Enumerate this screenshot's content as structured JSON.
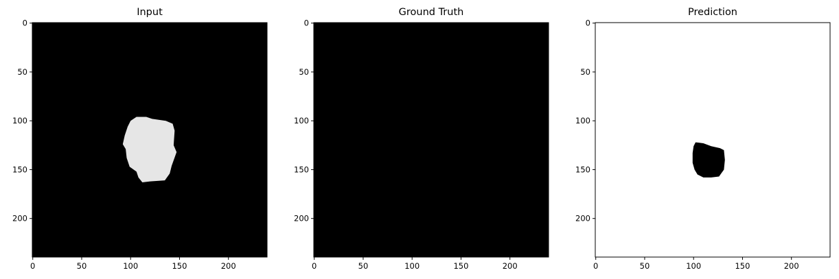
{
  "chart_data": [
    {
      "type": "heatmap",
      "title": "Input",
      "x_ticks": [
        0,
        50,
        100,
        150,
        200
      ],
      "y_ticks": [
        0,
        50,
        100,
        150,
        200
      ],
      "xlim": [
        -0.5,
        239.5
      ],
      "ylim": [
        239.5,
        -0.5
      ],
      "background": "#000000",
      "region": {
        "color": "#e6e6e6",
        "outline": [
          [
            106,
            96
          ],
          [
            116,
            96
          ],
          [
            122,
            98
          ],
          [
            136,
            100
          ],
          [
            143,
            103
          ],
          [
            145,
            110
          ],
          [
            144,
            125
          ],
          [
            147,
            132
          ],
          [
            142,
            146
          ],
          [
            140,
            154
          ],
          [
            135,
            161
          ],
          [
            120,
            162
          ],
          [
            112,
            163
          ],
          [
            108,
            158
          ],
          [
            106,
            152
          ],
          [
            99,
            147
          ],
          [
            96,
            138
          ],
          [
            95,
            129
          ],
          [
            92,
            124
          ],
          [
            94,
            115
          ],
          [
            97,
            106
          ],
          [
            100,
            100
          ]
        ]
      }
    },
    {
      "type": "heatmap",
      "title": "Ground Truth",
      "x_ticks": [
        0,
        50,
        100,
        150,
        200
      ],
      "y_ticks": [
        0,
        50,
        100,
        150,
        200
      ],
      "xlim": [
        -0.5,
        239.5
      ],
      "ylim": [
        239.5,
        -0.5
      ],
      "background": "#000000"
    },
    {
      "type": "heatmap",
      "title": "Prediction",
      "x_ticks": [
        0,
        50,
        100,
        150,
        200
      ],
      "y_ticks": [
        0,
        50,
        100,
        150,
        200
      ],
      "xlim": [
        -0.5,
        239.5
      ],
      "ylim": [
        239.5,
        -0.5
      ],
      "background": "#ffffff",
      "region": {
        "color": "#000000",
        "outline": [
          [
            102,
            122
          ],
          [
            110,
            123
          ],
          [
            118,
            126
          ],
          [
            127,
            128
          ],
          [
            131,
            130
          ],
          [
            132,
            140
          ],
          [
            131,
            150
          ],
          [
            126,
            157
          ],
          [
            118,
            158
          ],
          [
            110,
            158
          ],
          [
            104,
            155
          ],
          [
            101,
            150
          ],
          [
            99,
            143
          ],
          [
            99,
            133
          ],
          [
            100,
            126
          ]
        ]
      }
    }
  ]
}
